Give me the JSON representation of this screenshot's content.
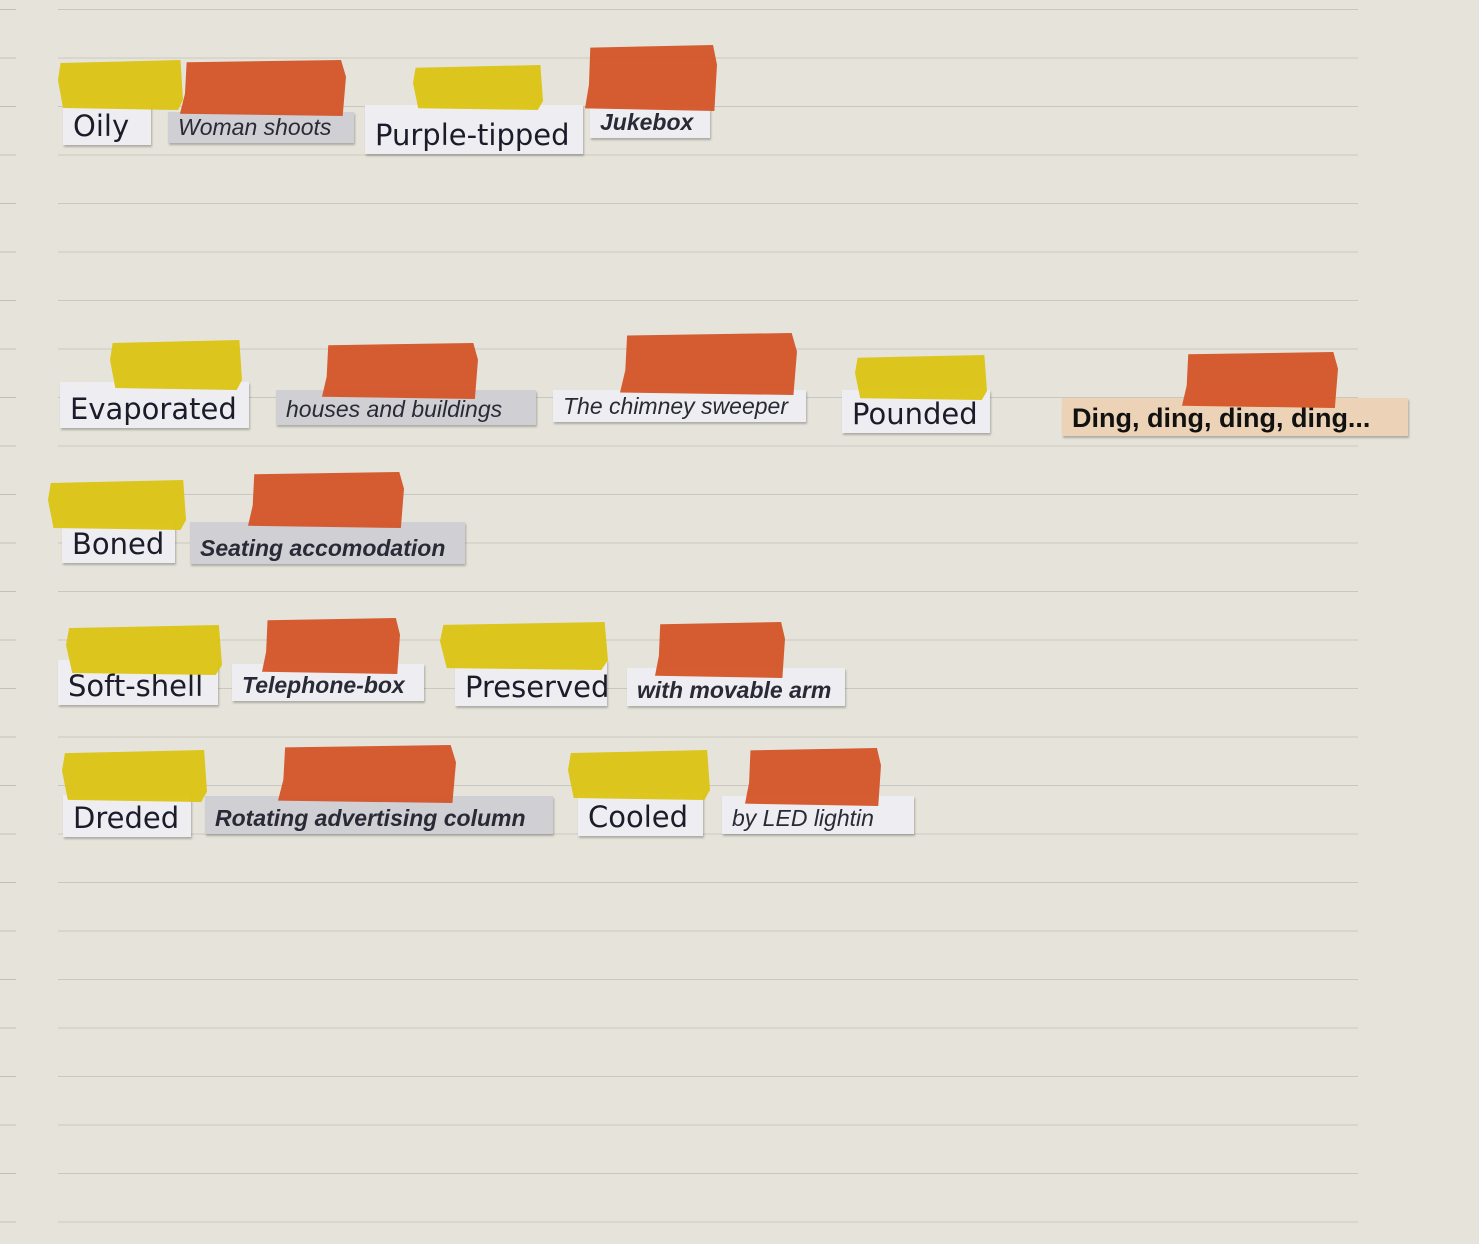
{
  "colors": {
    "paper": "#e6e4da",
    "yellow_tape": "#dcc414",
    "orange_tape": "#d4552a",
    "clipping": "#eeeef2"
  },
  "rows": [
    {
      "words": [
        "Oily",
        "Woman shoots",
        "Purple-tipped",
        "Jukebox"
      ]
    },
    {
      "words": [
        "Evaporated",
        "houses and buildings",
        "The chimney sweeper",
        "Pounded",
        "Ding, ding, ding, ding..."
      ]
    },
    {
      "words": [
        "Boned",
        "Seating accomodation"
      ]
    },
    {
      "words": [
        "Soft-shell",
        "Telephone-box",
        "Preserved",
        "with movable arm"
      ]
    },
    {
      "words": [
        "Dreded",
        "Rotating advertising column",
        "Cooled",
        "by LED lightin"
      ]
    }
  ]
}
